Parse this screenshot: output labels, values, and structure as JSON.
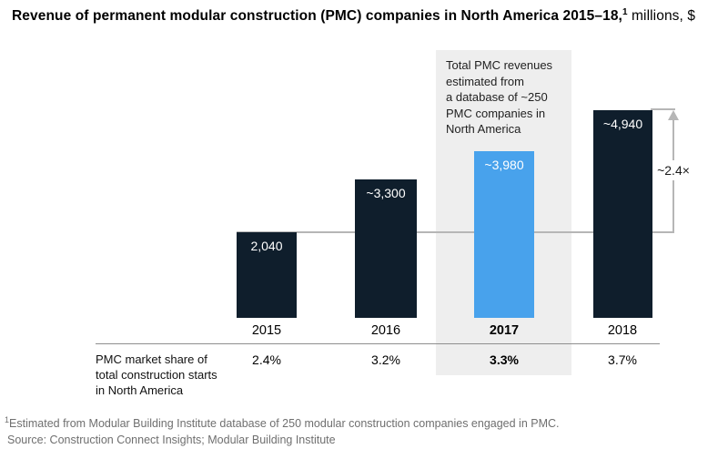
{
  "title": {
    "bold_part": "Revenue of permanent modular construction (PMC) companies in North America 2015–18,",
    "superscript": "1",
    "regular_part": " millions, $"
  },
  "chart_data": {
    "type": "bar",
    "title": "Revenue of permanent modular construction (PMC) companies in North America 2015–18, millions, $",
    "categories": [
      "2015",
      "2016",
      "2017",
      "2018"
    ],
    "series": [
      {
        "name": "PMC revenue, $ millions",
        "values": [
          2040,
          3300,
          3980,
          4940
        ],
        "labels": [
          "2,040",
          "~3,300",
          "~3,980",
          "~4,940"
        ]
      },
      {
        "name": "PMC market share of total construction starts in North America",
        "values": [
          2.4,
          3.2,
          3.3,
          3.7
        ],
        "labels": [
          "2.4%",
          "3.2%",
          "3.3%",
          "3.7%"
        ]
      }
    ],
    "highlighted_category": "2017",
    "annotation": "Total PMC revenues estimated from a database of ~250 PMC companies in North America",
    "growth_multiple_label": "~2.4×",
    "growth_multiple_from": "2015",
    "growth_multiple_to": "2018",
    "ylim": [
      0,
      5200
    ],
    "grid": false,
    "legend_position": "none",
    "bar_colors": {
      "default": "#0f1e2c",
      "highlight": "#48a2ec"
    }
  },
  "annotation_box": {
    "text": "Total PMC revenues\nestimated from\na database of ~250\nPMC companies in\nNorth America"
  },
  "bars": [
    {
      "year": "2015",
      "value_label": "2,040",
      "share": "2.4%"
    },
    {
      "year": "2016",
      "value_label": "~3,300",
      "share": "3.2%"
    },
    {
      "year": "2017",
      "value_label": "~3,980",
      "share": "3.3%"
    },
    {
      "year": "2018",
      "value_label": "~4,940",
      "share": "3.7%"
    }
  ],
  "arrow": {
    "label": "~2.4×"
  },
  "market_share_row": {
    "label": "PMC market share of\ntotal construction starts\nin North America"
  },
  "footnotes": {
    "note1_sup": "1",
    "note1_text": "Estimated from Modular Building Institute database of 250 modular construction companies engaged in PMC.",
    "source_text": "Source: Construction Connect Insights; Modular Building Institute"
  },
  "colors": {
    "bar_dark": "#0f1e2c",
    "bar_highlight": "#48a2ec",
    "band": "#eeeeee",
    "arrow_line": "#b6b6b6",
    "divider": "#8f8f8f",
    "footnote_text": "#6f6f6f"
  }
}
